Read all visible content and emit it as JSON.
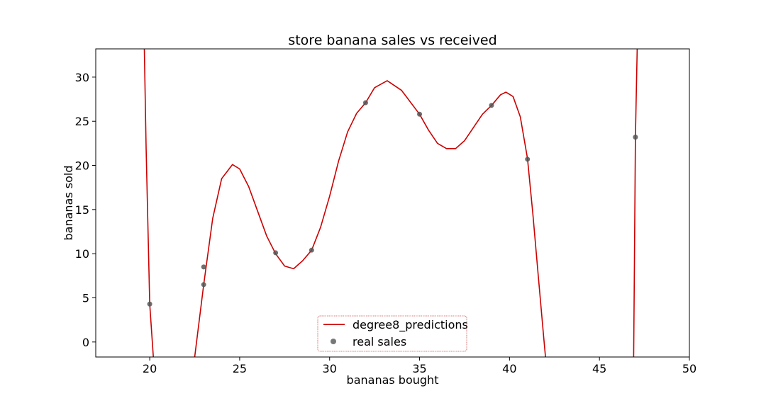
{
  "chart_data": {
    "type": "scatter",
    "title": "store banana sales vs received",
    "xlabel": "bananas bought",
    "ylabel": "bananas sold",
    "xlim": [
      17,
      50
    ],
    "ylim": [
      -1.7,
      33.2
    ],
    "xticks": [
      20,
      25,
      30,
      35,
      40,
      45,
      50
    ],
    "yticks": [
      0,
      5,
      10,
      15,
      20,
      25,
      30
    ],
    "grid": false,
    "legend_position": "bottom-center",
    "series": [
      {
        "name": "degree8_predictions",
        "kind": "line",
        "color": "#cc0000",
        "x": [
          19.7,
          19.8,
          20.0,
          20.2,
          22.5,
          23.0,
          23.5,
          24.0,
          24.6,
          25.0,
          25.5,
          26.0,
          26.5,
          27.0,
          27.5,
          28.0,
          28.5,
          29.0,
          29.5,
          30.0,
          30.5,
          31.0,
          31.5,
          32.0,
          32.5,
          33.2,
          34.0,
          35.0,
          35.5,
          36.0,
          36.5,
          37.0,
          37.5,
          38.0,
          38.5,
          39.0,
          39.5,
          39.8,
          40.2,
          40.6,
          41.0,
          41.3,
          41.6,
          41.9,
          42.0,
          46.9,
          46.95,
          47.0,
          47.05,
          47.1
        ],
        "y": [
          33.2,
          22.0,
          4.3,
          -1.7,
          -1.7,
          6.5,
          14.0,
          18.5,
          20.1,
          19.6,
          17.6,
          14.8,
          12.0,
          10.0,
          8.6,
          8.3,
          9.2,
          10.4,
          13.0,
          16.5,
          20.5,
          23.8,
          25.9,
          27.1,
          28.8,
          29.6,
          28.5,
          25.8,
          24.0,
          22.5,
          21.9,
          21.9,
          22.8,
          24.3,
          25.8,
          26.8,
          28.0,
          28.3,
          27.8,
          25.5,
          20.8,
          14.5,
          7.5,
          0.5,
          -1.7,
          -1.7,
          10.0,
          23.2,
          28.5,
          33.2
        ]
      },
      {
        "name": "real sales",
        "kind": "scatter",
        "color": "#555555",
        "x": [
          20,
          23,
          23,
          27,
          29,
          32,
          35,
          39,
          41,
          47
        ],
        "y": [
          4.3,
          8.5,
          6.5,
          10.1,
          10.4,
          27.1,
          25.8,
          26.8,
          20.7,
          23.2
        ]
      }
    ]
  }
}
